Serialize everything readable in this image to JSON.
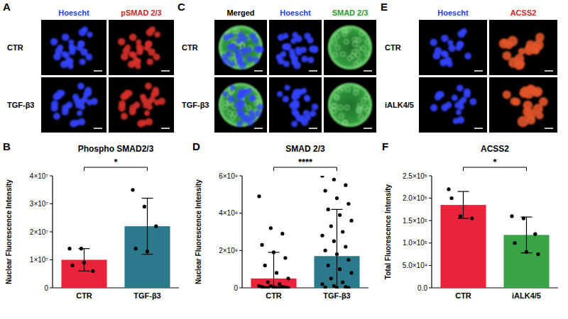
{
  "image_panels": [
    {
      "letter": "A",
      "columns": [
        "Hoescht",
        "pSMAD 2/3"
      ],
      "rows": [
        "CTR",
        "TGF-β3"
      ]
    },
    {
      "letter": "C",
      "columns": [
        "Merged",
        "Hoescht",
        "SMAD 2/3"
      ],
      "rows": [
        "CTR",
        "TGF-β3"
      ]
    },
    {
      "letter": "E",
      "columns": [
        "Hoescht",
        "ACSS2"
      ],
      "rows": [
        "CTR",
        "iALK4/5"
      ]
    }
  ],
  "chart_letters": [
    "B",
    "D",
    "F"
  ],
  "chart_data": [
    {
      "type": "bar",
      "title": "Phospho SMAD2/3",
      "y_label": "Nuclear Fluorescence Intensity",
      "categories": [
        "CTR",
        "TGF-β3"
      ],
      "values": [
        10000000.0,
        22000000.0
      ],
      "errors": [
        4000000.0,
        10000000.0
      ],
      "points": [
        [
          14000000.0,
          14000000.0,
          6000000.0,
          8000000.0,
          9000000.0
        ],
        [
          35000000.0,
          29000000.0,
          22000000.0,
          14000000.0,
          13000000.0
        ]
      ],
      "colors": [
        "#e8233a",
        "#2b7a8c"
      ],
      "ylim": [
        0,
        40000000.0
      ],
      "yticks": [
        0,
        {
          "value": 10000000.0,
          "label": "1×10⁷"
        },
        {
          "value": 20000000.0,
          "label": "2×10⁷"
        },
        {
          "value": 30000000.0,
          "label": "3×10⁷"
        },
        {
          "value": 40000000.0,
          "label": "4×10⁷"
        }
      ],
      "annotations": [
        "*"
      ]
    },
    {
      "type": "bar",
      "title": "SMAD 2/3",
      "y_label": "Nuclear Fluorescence Intensity",
      "categories": [
        "CTR",
        "TGF-β3"
      ],
      "values": [
        500000000.0,
        1700000000.0
      ],
      "errors": [
        1400000000.0,
        2500000000.0
      ],
      "points": [
        [
          4900000000.0,
          3200000000.0,
          2900000000.0,
          2300000000.0,
          1900000000.0,
          1600000000.0,
          1200000000.0,
          800000000.0,
          500000000.0,
          300000000.0,
          200000000.0,
          100000000.0,
          100000000.0,
          50000000.0,
          50000000.0,
          20000000.0,
          20000000.0,
          10000000.0,
          10000000.0,
          0,
          0,
          0
        ],
        [
          6000000000.0,
          5800000000.0,
          5500000000.0,
          5200000000.0,
          4800000000.0,
          4500000000.0,
          4200000000.0,
          3900000000.0,
          3600000000.0,
          3300000000.0,
          3000000000.0,
          2800000000.0,
          2500000000.0,
          2200000000.0,
          2000000000.0,
          1800000000.0,
          1500000000.0,
          1200000000.0,
          1000000000.0,
          800000000.0,
          500000000.0,
          300000000.0,
          200000000.0,
          100000000.0,
          50000000.0,
          20000000.0,
          0,
          0
        ]
      ],
      "colors": [
        "#e8233a",
        "#2b7a8c"
      ],
      "ylim": [
        0,
        6000000000.0
      ],
      "yticks": [
        0,
        {
          "value": 2000000000.0,
          "label": "2×10⁹"
        },
        {
          "value": 4000000000.0,
          "label": "4×10⁹"
        },
        {
          "value": 6000000000.0,
          "label": "6×10⁹"
        }
      ],
      "annotations": [
        "****"
      ]
    },
    {
      "type": "bar",
      "title": "ACSS2",
      "y_label": "Total Fluorescence Intensity",
      "categories": [
        "CTR",
        "iALK4/5"
      ],
      "values": [
        185000.0,
        118000.0
      ],
      "errors": [
        30000.0,
        40000.0
      ],
      "points": [
        [
          220000.0,
          160000.0,
          155000.0,
          200000.0
        ],
        [
          160000.0,
          155000.0,
          120000.0,
          100000.0,
          80000.0,
          75000.0
        ]
      ],
      "colors": [
        "#e8233a",
        "#3aa346"
      ],
      "ylim": [
        0,
        250000.0
      ],
      "yticks": [
        {
          "value": 0,
          "label": "0.0"
        },
        {
          "value": 50000.0,
          "label": "5.0×10⁴"
        },
        {
          "value": 100000.0,
          "label": "1.0×10⁵"
        },
        {
          "value": 150000.0,
          "label": "1.5×10⁵"
        },
        {
          "value": 200000.0,
          "label": "2.0×10⁵"
        },
        {
          "value": 250000.0,
          "label": "2.5×10⁵"
        }
      ],
      "annotations": [
        "*"
      ]
    }
  ]
}
